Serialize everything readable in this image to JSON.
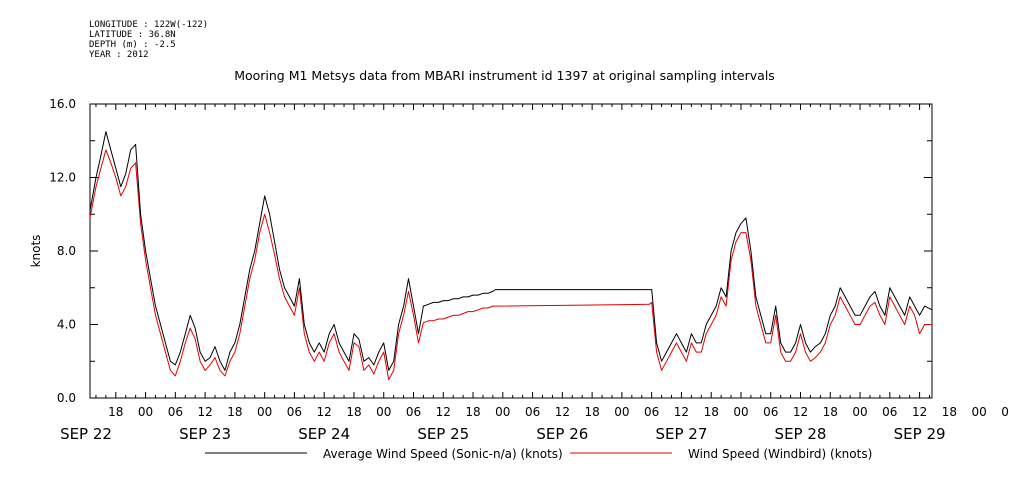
{
  "header": {
    "meta_lines": [
      "LONGITUDE : 122W(-122)",
      "LATITUDE : 36.8N",
      "DEPTH (m) : -2.5",
      "YEAR : 2012"
    ],
    "title": "Mooring M1 Metsys data from MBARI instrument id 1397 at original sampling intervals"
  },
  "chart_data": {
    "type": "line",
    "ylabel": "knots",
    "ylim": [
      0,
      16
    ],
    "yticks": [
      "0.0",
      "4.0",
      "8.0",
      "12.0",
      "16.0"
    ],
    "x_unit": "hours since 2012-09-22 00:00",
    "xlim": [
      12.8,
      182.5
    ],
    "hour_tick_labels": [
      "18",
      "00",
      "06",
      "12",
      "18",
      "00",
      "06",
      "12",
      "18",
      "00",
      "06",
      "12",
      "18",
      "00",
      "06",
      "12",
      "18",
      "00",
      "06",
      "12",
      "18",
      "00",
      "06",
      "12",
      "18",
      "00",
      "06",
      "12",
      "18",
      "00",
      "06",
      "12"
    ],
    "day_labels": [
      "SEP 22",
      "SEP 23",
      "SEP 24",
      "SEP 25",
      "SEP 26",
      "SEP 27",
      "SEP 28",
      "SEP 29"
    ],
    "legend": {
      "placement": "bottom",
      "entries": [
        {
          "label": "Average Wind Speed (Sonic-n/a) (knots)",
          "color": "#000000"
        },
        {
          "label": "Wind Speed (Windbird) (knots)",
          "color": "#e00000"
        }
      ]
    },
    "series": [
      {
        "name": "Average Wind Speed (Sonic-n/a) (knots)",
        "color": "#000000",
        "x": [
          12.8,
          14,
          15,
          16,
          17,
          18,
          19,
          20,
          21,
          22,
          23,
          24,
          25,
          26,
          27,
          28,
          29,
          30,
          31,
          32,
          33,
          34,
          35,
          36,
          37,
          38,
          39,
          40,
          41,
          42,
          43,
          44,
          45,
          46,
          47,
          48,
          49,
          50,
          51,
          52,
          53,
          54,
          55,
          56,
          57,
          58,
          59,
          60,
          61,
          62,
          63,
          64,
          65,
          66,
          67,
          68,
          69,
          70,
          71,
          72,
          73,
          74,
          75,
          76,
          77,
          78,
          79,
          80,
          81,
          82,
          83,
          84,
          85,
          86,
          87,
          88,
          89,
          90,
          91,
          92,
          93,
          94,
          94.5,
          125.5,
          126,
          127,
          128,
          129,
          130,
          131,
          132,
          133,
          134,
          135,
          136,
          137,
          138,
          139,
          140,
          141,
          142,
          143,
          144,
          145,
          146,
          147,
          148,
          149,
          150,
          151,
          152,
          153,
          154,
          155,
          156,
          157,
          158,
          159,
          160,
          161,
          162,
          163,
          164,
          165,
          166,
          167,
          168,
          169,
          170,
          171,
          172,
          173,
          174,
          175,
          176,
          177,
          178,
          179,
          180,
          181,
          182.5
        ],
        "y": [
          10.2,
          12,
          13.2,
          14.5,
          13.5,
          12.5,
          11.5,
          12.2,
          13.5,
          13.8,
          10,
          8,
          6.5,
          5,
          4,
          3,
          2,
          1.8,
          2.5,
          3.5,
          4.5,
          3.8,
          2.5,
          2,
          2.2,
          2.8,
          2,
          1.5,
          2.5,
          3,
          4,
          5.5,
          7,
          8,
          9.5,
          11,
          10,
          8.5,
          7,
          6,
          5.5,
          5,
          6.5,
          4,
          3,
          2.5,
          3,
          2.5,
          3.5,
          4,
          3,
          2.5,
          2,
          3.5,
          3.2,
          2,
          2.2,
          1.8,
          2.5,
          3,
          1.5,
          2,
          4,
          5,
          6.5,
          5,
          3.5,
          5,
          5.1,
          5.2,
          5.2,
          5.3,
          5.3,
          5.4,
          5.4,
          5.5,
          5.5,
          5.6,
          5.6,
          5.7,
          5.7,
          5.8,
          5.9,
          5.9,
          5.9,
          3,
          2,
          2.5,
          3,
          3.5,
          3,
          2.5,
          3.5,
          3,
          3,
          4,
          4.5,
          5,
          6,
          5.5,
          8,
          9,
          9.5,
          9.8,
          8,
          5.5,
          4.5,
          3.5,
          3.5,
          5,
          3,
          2.5,
          2.5,
          3,
          4,
          3,
          2.5,
          2.8,
          3,
          3.5,
          4.5,
          5,
          6,
          5.5,
          5,
          4.5,
          4.5,
          5,
          5.5,
          5.8,
          5,
          4.5,
          6,
          5.5,
          5,
          4.5,
          5.5,
          5,
          4.5,
          5,
          4.8
        ]
      },
      {
        "name": "Wind Speed (Windbird) (knots)",
        "color": "#e00000",
        "x": [
          12.8,
          14,
          15,
          16,
          17,
          18,
          19,
          20,
          21,
          22,
          23,
          24,
          25,
          26,
          27,
          28,
          29,
          30,
          31,
          32,
          33,
          34,
          35,
          36,
          37,
          38,
          39,
          40,
          41,
          42,
          43,
          44,
          45,
          46,
          47,
          48,
          49,
          50,
          51,
          52,
          53,
          54,
          55,
          56,
          57,
          58,
          59,
          60,
          61,
          62,
          63,
          64,
          65,
          66,
          67,
          68,
          69,
          70,
          71,
          72,
          73,
          74,
          75,
          76,
          77,
          78,
          79,
          80,
          81,
          82,
          83,
          84,
          85,
          86,
          87,
          88,
          89,
          90,
          91,
          92,
          93,
          94,
          94.5,
          125.5,
          126,
          127,
          128,
          129,
          130,
          131,
          132,
          133,
          134,
          135,
          136,
          137,
          138,
          139,
          140,
          141,
          142,
          143,
          144,
          145,
          146,
          147,
          148,
          149,
          150,
          151,
          152,
          153,
          154,
          155,
          156,
          157,
          158,
          159,
          160,
          161,
          162,
          163,
          164,
          165,
          166,
          167,
          168,
          169,
          170,
          171,
          172,
          173,
          174,
          175,
          176,
          177,
          178,
          179,
          180,
          181,
          182.5
        ],
        "y": [
          9.8,
          11.5,
          12.5,
          13.5,
          12.8,
          12,
          11,
          11.5,
          12.5,
          12.8,
          9.5,
          7.5,
          6,
          4.5,
          3.5,
          2.5,
          1.5,
          1.2,
          2,
          3,
          3.8,
          3.2,
          2,
          1.5,
          1.8,
          2.2,
          1.5,
          1.2,
          2,
          2.5,
          3.5,
          5,
          6.5,
          7.5,
          9,
          10,
          9,
          7.8,
          6.5,
          5.5,
          5,
          4.5,
          6,
          3.5,
          2.5,
          2,
          2.5,
          2,
          3,
          3.5,
          2.5,
          2,
          1.5,
          3,
          2.8,
          1.5,
          1.8,
          1.3,
          2,
          2.5,
          1,
          1.5,
          3.5,
          4.5,
          5.8,
          4.5,
          3,
          4.1,
          4.2,
          4.2,
          4.3,
          4.3,
          4.4,
          4.5,
          4.5,
          4.6,
          4.7,
          4.7,
          4.8,
          4.9,
          4.9,
          5,
          5,
          5.1,
          5.2,
          2.5,
          1.5,
          2,
          2.5,
          3,
          2.5,
          2,
          3,
          2.5,
          2.5,
          3.5,
          4,
          4.5,
          5.5,
          5,
          7.5,
          8.5,
          9,
          9,
          7.5,
          5,
          4,
          3,
          3,
          4.5,
          2.5,
          2,
          2,
          2.5,
          3.5,
          2.5,
          2,
          2.2,
          2.5,
          3,
          4,
          4.5,
          5.5,
          5,
          4.5,
          4,
          4,
          4.5,
          5,
          5.2,
          4.5,
          4,
          5.5,
          5,
          4.5,
          4,
          5,
          4.5,
          3.5,
          4,
          4
        ]
      }
    ]
  }
}
